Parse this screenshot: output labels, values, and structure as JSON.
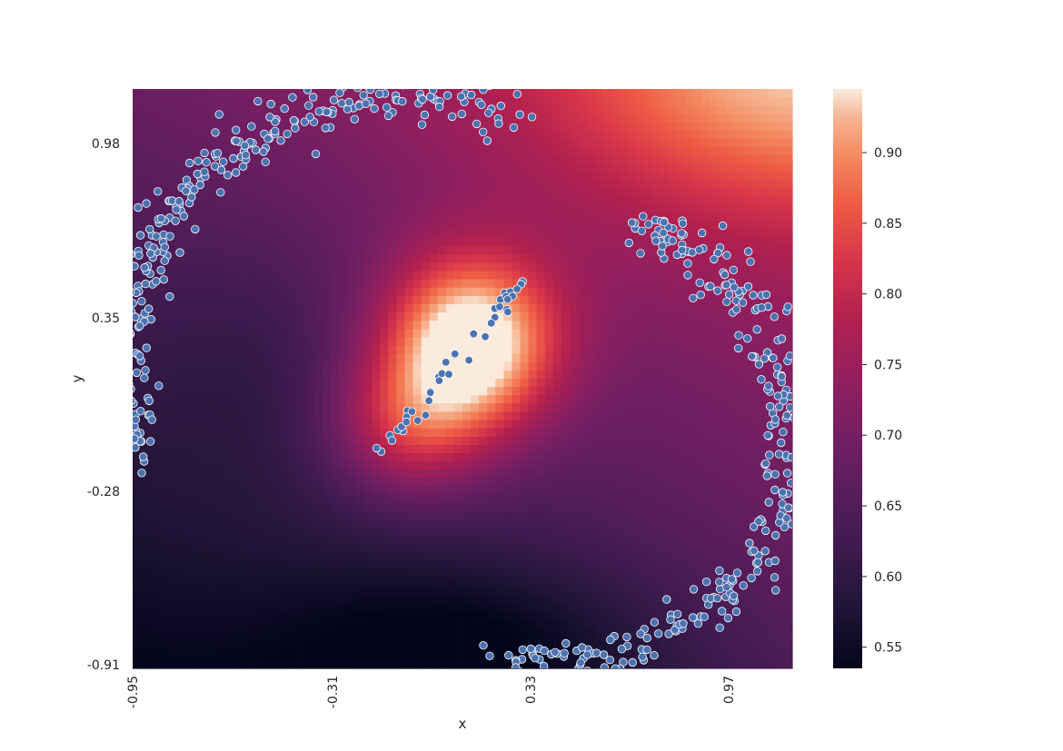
{
  "chart_data": {
    "type": "heatmap",
    "overlay": "scatter",
    "title": "",
    "xlabel": "x",
    "ylabel": "y",
    "x_ticks": [
      "-0.95",
      "-0.31",
      "0.33",
      "0.97"
    ],
    "y_ticks": [
      "0.98",
      "0.35",
      "-0.28",
      "-0.91"
    ],
    "xlim": [
      -0.95,
      1.2
    ],
    "ylim": [
      -0.92,
      1.17
    ],
    "colorbar": {
      "ticks": [
        "0.55",
        "0.60",
        "0.65",
        "0.70",
        "0.75",
        "0.80",
        "0.85",
        "0.90"
      ],
      "range": [
        0.535,
        0.945
      ],
      "colormap": "rocket"
    },
    "heatmap_field": {
      "base": 0.65,
      "x_slope": 0.05,
      "y_slope": 0.07,
      "bumps": [
        {
          "x": 0.15,
          "y": 0.25,
          "sx": 0.2,
          "sy": 0.22,
          "amp": 0.32
        },
        {
          "x": -0.05,
          "y": -0.05,
          "sx": 0.18,
          "sy": 0.18,
          "amp": 0.15
        },
        {
          "x": 1.15,
          "y": 1.2,
          "sx": 0.55,
          "sy": 0.35,
          "amp": 0.14
        },
        {
          "x": 0.15,
          "y": -0.85,
          "sx": 0.45,
          "sy": 0.25,
          "amp": -0.08
        },
        {
          "x": -0.55,
          "y": 0.2,
          "sx": 0.25,
          "sy": 0.35,
          "amp": -0.03
        }
      ]
    },
    "scatter_series": [
      {
        "name": "upper-moon",
        "shape": "upper-arc",
        "center": [
          -0.05,
          0.18
        ],
        "radius_x": 0.92,
        "radius_y": 0.97,
        "from_deg": 70,
        "to_deg": 200,
        "count": 300,
        "noise": 0.045
      },
      {
        "name": "lower-moon",
        "shape": "lower-arc",
        "center": [
          0.4,
          -0.08
        ],
        "radius_x": 0.8,
        "radius_y": 0.82,
        "from_deg": -100,
        "to_deg": 70,
        "count": 300,
        "noise": 0.045
      },
      {
        "name": "bridge",
        "shape": "line",
        "from": [
          -0.18,
          -0.2
        ],
        "to": [
          0.32,
          0.48
        ],
        "count": 40,
        "noise": 0.015
      }
    ],
    "point_color": "#4c72b0"
  }
}
